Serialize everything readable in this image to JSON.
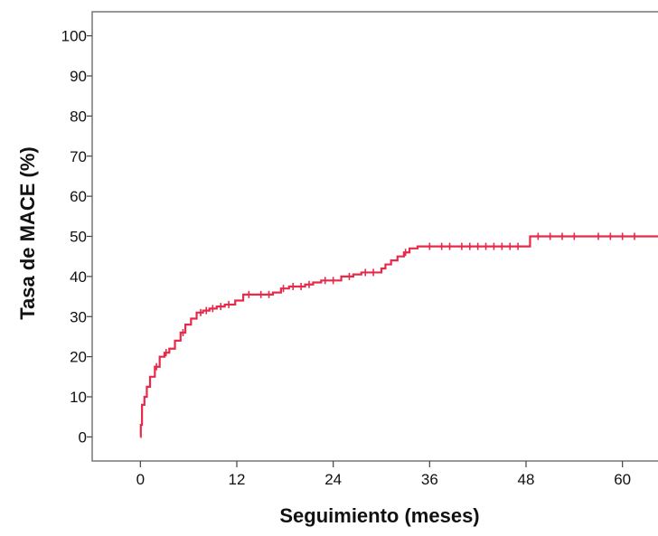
{
  "chart_data": {
    "type": "line",
    "xlabel": "Seguimiento (meses)",
    "ylabel": "Tasa de MACE (%)",
    "xlim": [
      -6,
      66
    ],
    "ylim": [
      -6,
      106
    ],
    "x_ticks": [
      0,
      12,
      24,
      36,
      48,
      60
    ],
    "y_ticks": [
      0,
      10,
      20,
      30,
      40,
      50,
      60,
      70,
      80,
      90,
      100
    ],
    "grid": false,
    "legend": "none",
    "line_color": "#e8294a",
    "series": [
      {
        "step": true,
        "x": [
          0,
          0.05,
          0.2,
          0.5,
          0.8,
          1.2,
          1.8,
          2.4,
          3.0,
          3.6,
          4.3,
          5.0,
          5.6,
          6.3,
          7.0,
          7.8,
          8.6,
          9.5,
          10.5,
          11.8,
          12.8,
          14.5,
          16.5,
          17.5,
          18.5,
          20.5,
          21.5,
          22.5,
          25.0,
          26.5,
          27.5,
          29.5,
          30.0,
          30.5,
          31.2,
          32.0,
          32.8,
          33.5,
          34.5,
          40.0,
          46.0,
          48.5,
          55.0,
          62.0,
          66.0
        ],
        "y": [
          0,
          3,
          8,
          10,
          12.5,
          15,
          17.5,
          20,
          21,
          22,
          24,
          26,
          28,
          29.5,
          31,
          31.5,
          32,
          32.5,
          33,
          34,
          35.5,
          35.5,
          36,
          37,
          37.5,
          38,
          38.5,
          39,
          40,
          40.5,
          41,
          41,
          42,
          43,
          44,
          45,
          46,
          47,
          47.5,
          47.5,
          47.5,
          50,
          50,
          50,
          50
        ],
        "censored_x": [
          2.0,
          3.2,
          5.3,
          7.5,
          8.2,
          9.0,
          10.0,
          11.0,
          13.5,
          15.0,
          16.0,
          17.8,
          19.0,
          20.0,
          21.0,
          23.0,
          24.0,
          26.0,
          28.0,
          29.0,
          33.0,
          36.0,
          37.5,
          38.5,
          40.0,
          41.0,
          42.0,
          43.0,
          44.0,
          45.0,
          46.0,
          47.0,
          49.5,
          51.0,
          52.5,
          54.0,
          57.0,
          58.5,
          60.0,
          61.5
        ]
      }
    ]
  }
}
